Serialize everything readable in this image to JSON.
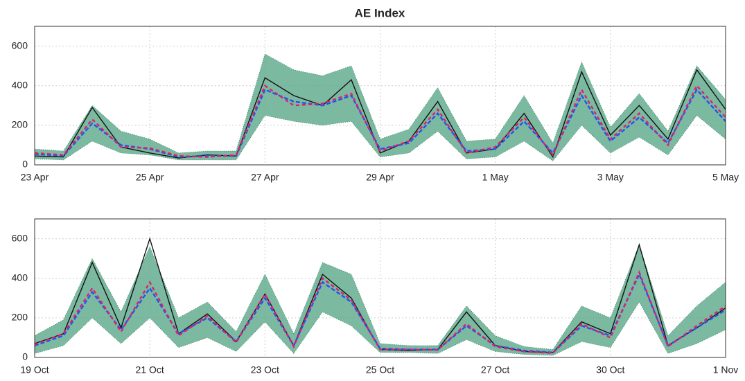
{
  "chart_data": [
    {
      "type": "line",
      "title": "AE Index",
      "x": [
        0,
        0.5,
        1,
        1.5,
        2,
        2.5,
        3,
        3.5,
        4,
        4.5,
        5,
        5.5,
        6,
        6.5,
        7,
        7.5,
        8,
        8.5,
        9,
        9.5,
        10,
        10.5,
        11,
        11.5,
        12
      ],
      "xlim": [
        0,
        12
      ],
      "xticks": [
        {
          "value": 0,
          "label": "23 Apr"
        },
        {
          "value": 2,
          "label": "25 Apr"
        },
        {
          "value": 4,
          "label": "27 Apr"
        },
        {
          "value": 6,
          "label": "29 Apr"
        },
        {
          "value": 8,
          "label": "1 May"
        },
        {
          "value": 10,
          "label": "3 May"
        },
        {
          "value": 12,
          "label": "5 May"
        }
      ],
      "ylim": [
        0,
        700
      ],
      "yticks": [
        0,
        200,
        400,
        600
      ],
      "grid": true,
      "band": {
        "color": "#5aa88a",
        "lower": [
          30,
          25,
          120,
          60,
          50,
          25,
          25,
          25,
          250,
          220,
          200,
          220,
          40,
          60,
          170,
          30,
          40,
          120,
          20,
          200,
          60,
          140,
          50,
          250,
          130
        ],
        "upper": [
          80,
          70,
          300,
          170,
          130,
          60,
          70,
          70,
          560,
          480,
          450,
          500,
          130,
          180,
          390,
          120,
          130,
          350,
          110,
          520,
          190,
          360,
          170,
          500,
          330
        ]
      },
      "series": [
        {
          "color": "#111111",
          "values": [
            45,
            40,
            290,
            90,
            60,
            35,
            50,
            45,
            440,
            350,
            300,
            430,
            60,
            120,
            320,
            60,
            80,
            260,
            40,
            470,
            150,
            300,
            130,
            480,
            280
          ]
        },
        {
          "color": "#2255ee",
          "values": [
            55,
            45,
            210,
            100,
            80,
            40,
            45,
            45,
            380,
            320,
            300,
            350,
            80,
            110,
            260,
            70,
            80,
            220,
            60,
            350,
            120,
            240,
            110,
            380,
            220
          ]
        },
        {
          "color": "#e0206a",
          "values": [
            60,
            50,
            230,
            90,
            85,
            45,
            40,
            50,
            400,
            300,
            310,
            360,
            70,
            120,
            280,
            60,
            90,
            240,
            50,
            380,
            130,
            260,
            100,
            400,
            240
          ]
        }
      ]
    },
    {
      "type": "line",
      "x": [
        0,
        0.5,
        1,
        1.5,
        2,
        2.5,
        3,
        3.5,
        4,
        4.5,
        5,
        5.5,
        6,
        6.5,
        7,
        7.5,
        8,
        8.5,
        9,
        9.5,
        10,
        10.5,
        11,
        11.5,
        12
      ],
      "xlim": [
        0,
        12
      ],
      "xticks": [
        {
          "value": 0,
          "label": "19 Oct"
        },
        {
          "value": 2,
          "label": "21 Oct"
        },
        {
          "value": 4,
          "label": "23 Oct"
        },
        {
          "value": 6,
          "label": "25 Oct"
        },
        {
          "value": 8,
          "label": "27 Oct"
        },
        {
          "value": 10,
          "label": "30 Oct"
        },
        {
          "value": 12,
          "label": "1 Nov"
        }
      ],
      "ylim": [
        0,
        700
      ],
      "yticks": [
        0,
        200,
        400,
        600
      ],
      "grid": true,
      "band": {
        "color": "#5aa88a",
        "lower": [
          20,
          60,
          200,
          70,
          200,
          50,
          100,
          30,
          180,
          20,
          230,
          160,
          25,
          25,
          20,
          90,
          30,
          15,
          10,
          80,
          50,
          280,
          20,
          70,
          140
        ],
        "upper": [
          110,
          190,
          500,
          230,
          560,
          200,
          280,
          130,
          420,
          120,
          480,
          420,
          70,
          60,
          60,
          260,
          110,
          55,
          40,
          260,
          200,
          570,
          110,
          260,
          380
        ]
      },
      "series": [
        {
          "color": "#111111",
          "values": [
            70,
            120,
            480,
            150,
            600,
            120,
            220,
            80,
            320,
            60,
            420,
            300,
            40,
            35,
            40,
            230,
            60,
            30,
            25,
            180,
            120,
            570,
            60,
            150,
            250
          ]
        },
        {
          "color": "#2255ee",
          "values": [
            60,
            110,
            330,
            140,
            350,
            120,
            200,
            80,
            300,
            60,
            380,
            280,
            45,
            40,
            40,
            160,
            60,
            35,
            25,
            160,
            110,
            420,
            60,
            150,
            240
          ]
        },
        {
          "color": "#e0206a",
          "values": [
            65,
            120,
            350,
            130,
            380,
            110,
            210,
            75,
            320,
            55,
            400,
            290,
            40,
            40,
            38,
            170,
            55,
            30,
            22,
            170,
            100,
            430,
            55,
            160,
            260
          ]
        }
      ]
    }
  ]
}
